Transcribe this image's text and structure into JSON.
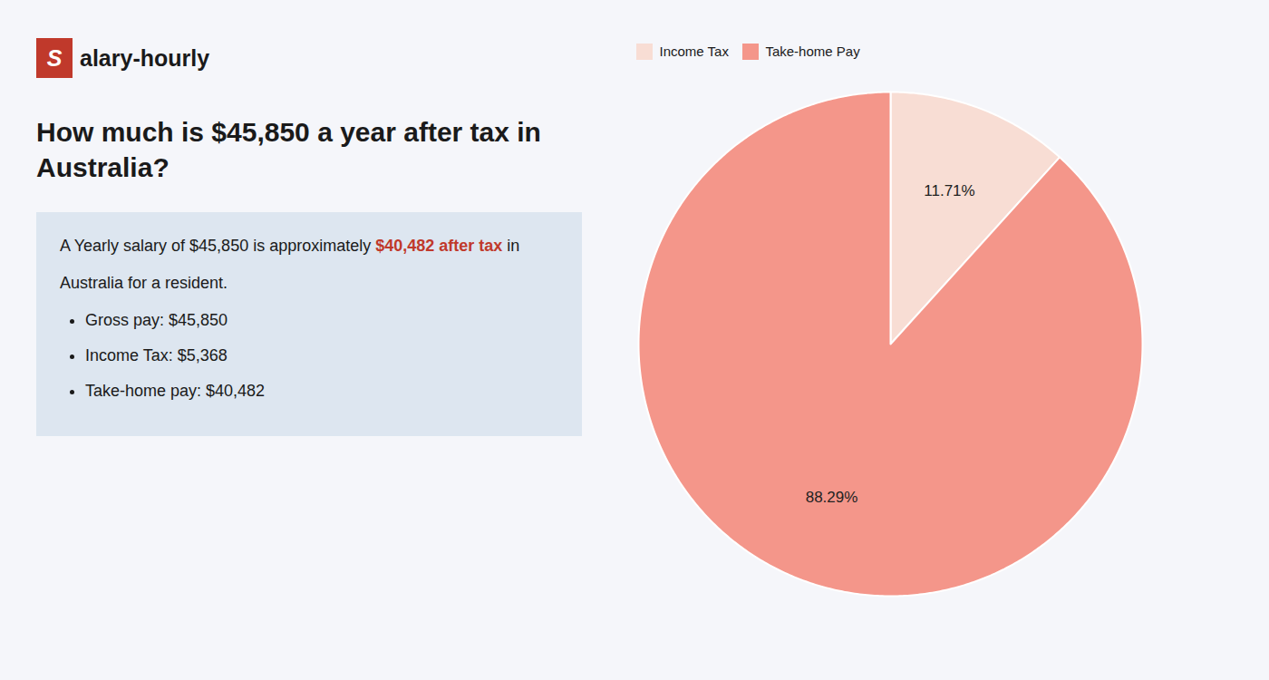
{
  "chart_data": {
    "type": "pie",
    "title": "How much is $45,850 a year after tax in Australia?",
    "annotations": [
      [
        "S",
        "alary-hourly"
      ],
      [
        "A Yearly salary of $45,850 is approximately ",
        "$40,482 after tax",
        " in"
      ],
      [
        "Australia for a resident."
      ],
      [
        "Gross pay: $45,850"
      ],
      [
        "Income Tax: $5,368"
      ],
      [
        "Take-home pay: $40,482"
      ]
    ],
    "categories": [
      "Income Tax",
      "Take-home Pay"
    ],
    "values": [
      11.71,
      88.29
    ],
    "value_labels": [
      "11.71%",
      "88.29%"
    ],
    "colors": [
      "#f8ddd4",
      "#f4968a"
    ],
    "data_labels": true,
    "legend": "upper left"
  }
}
